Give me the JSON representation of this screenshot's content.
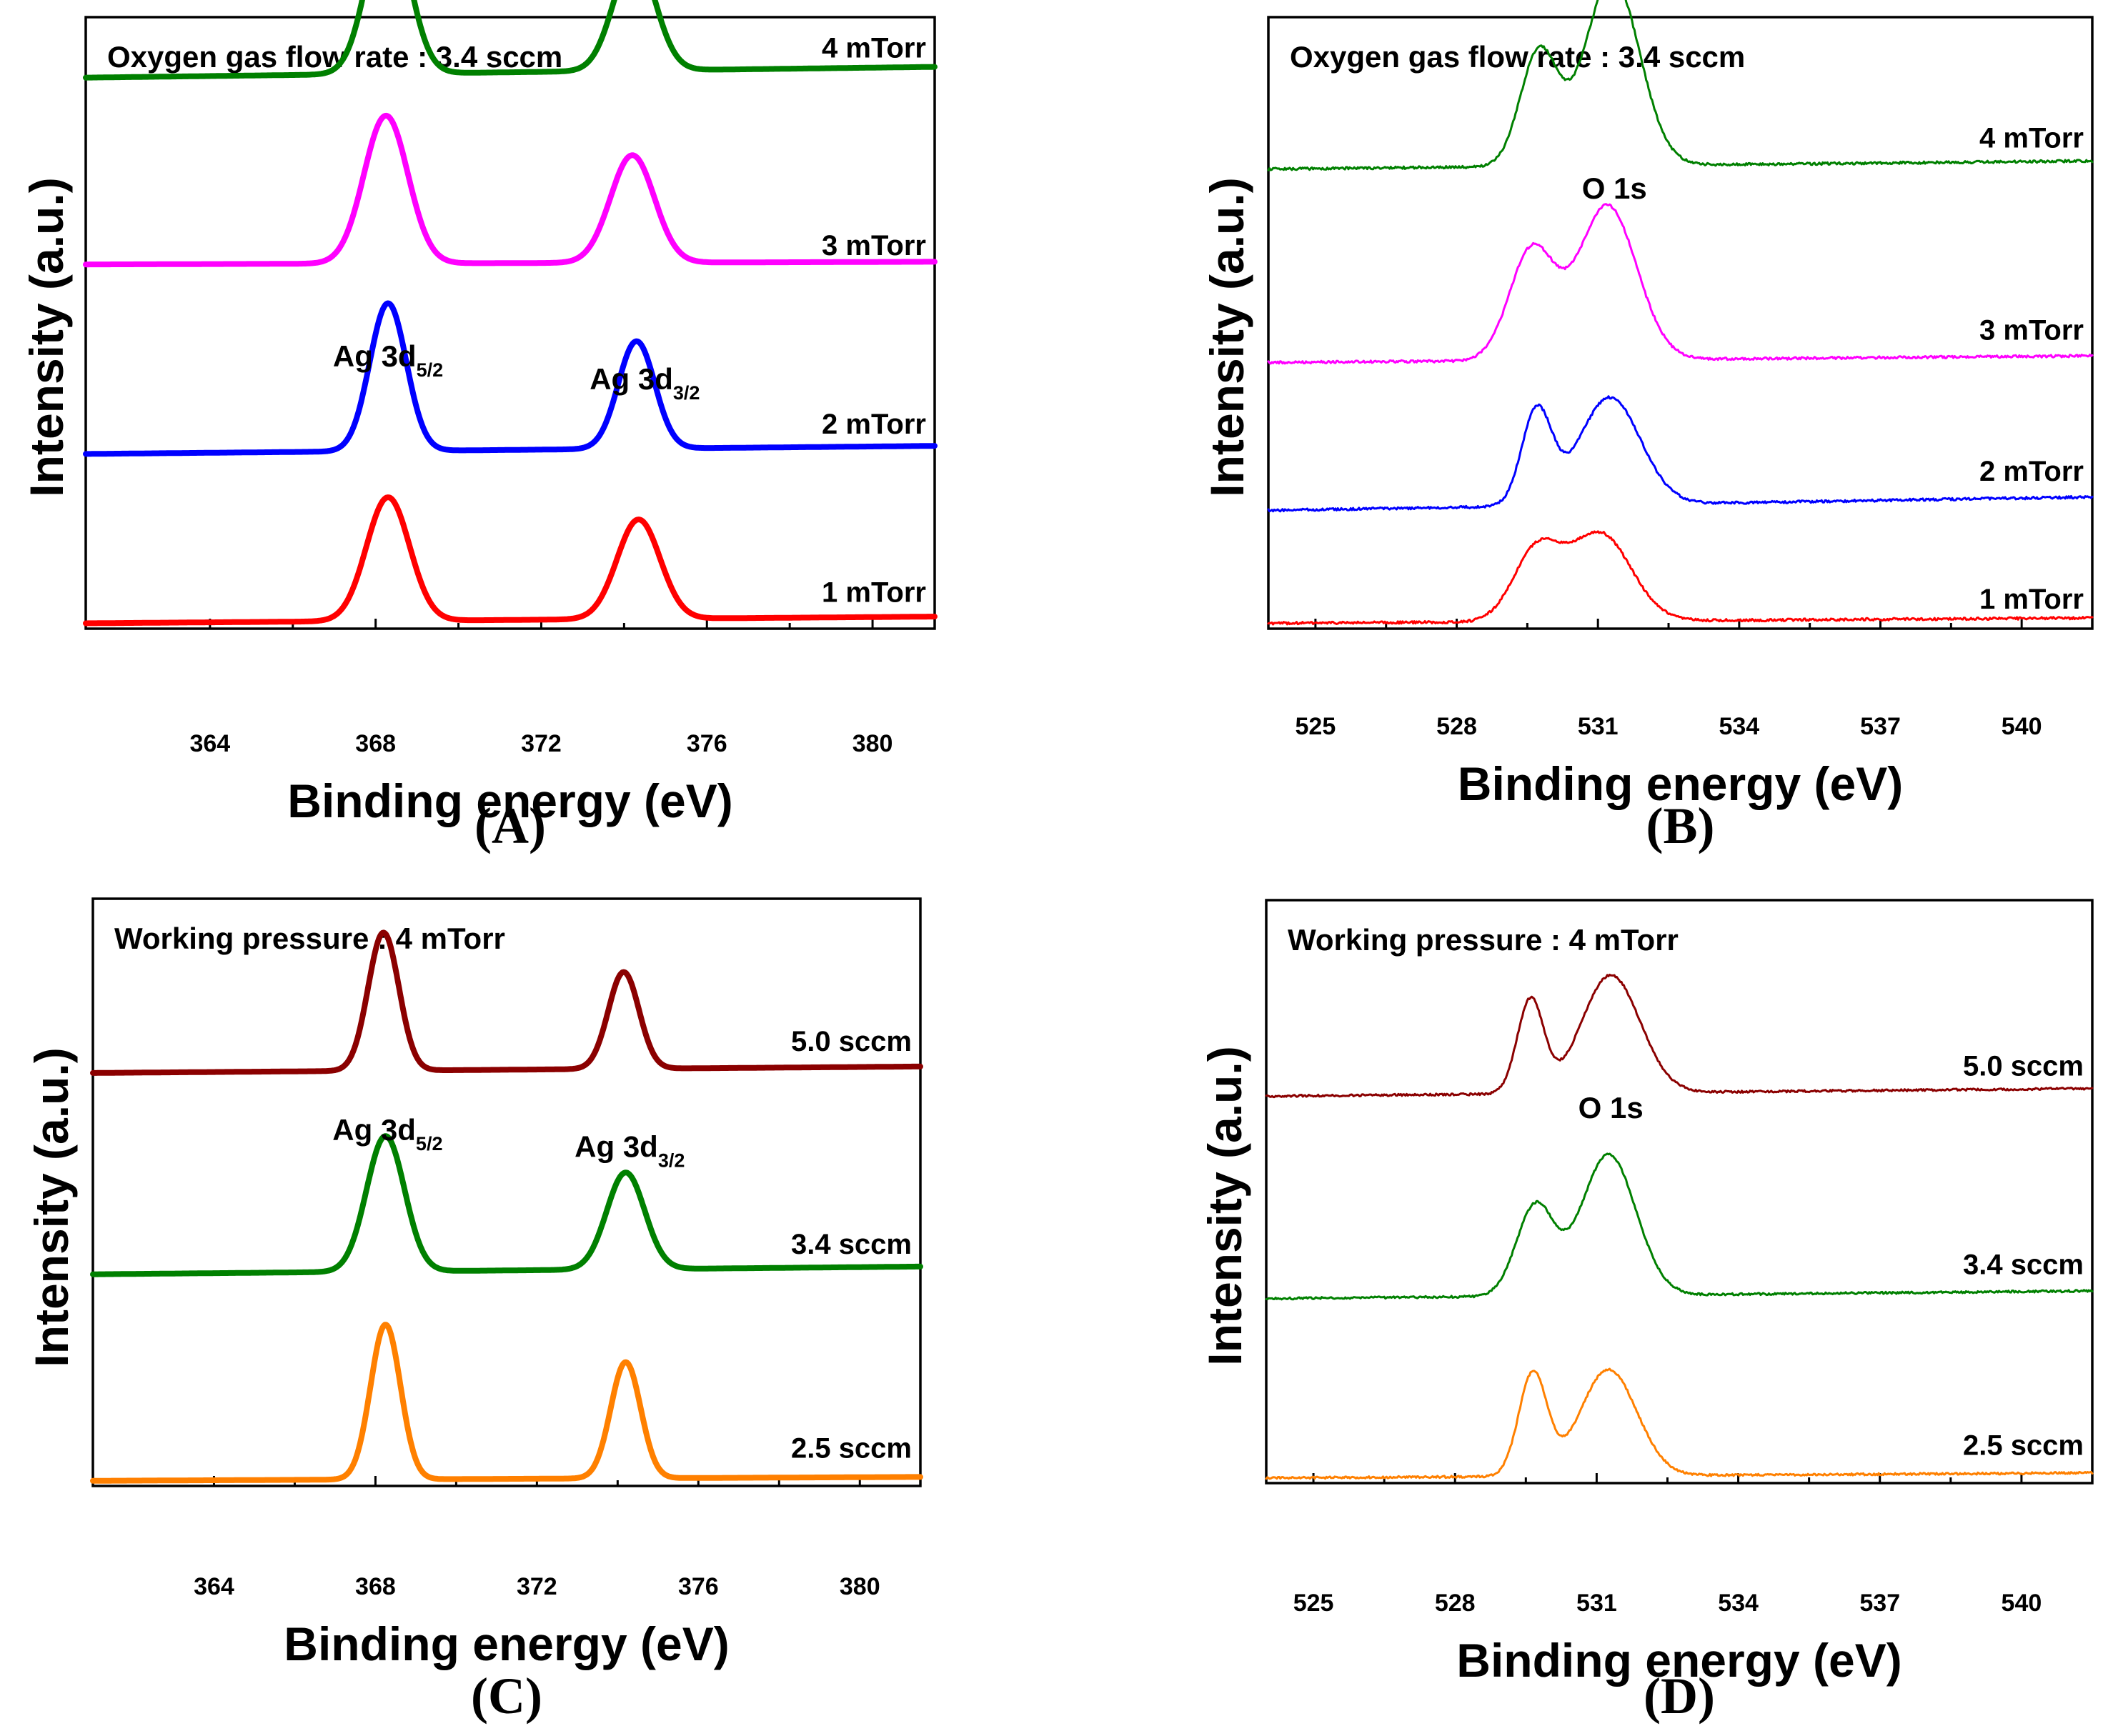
{
  "chart_data": [
    {
      "type": "line",
      "panel_label": "(A)",
      "title": "Oxygen gas flow rate : 3.4 sccm",
      "xlabel": "Binding energy (eV)",
      "ylabel": "Intensity (a.u.)",
      "xlim": [
        361,
        381.5
      ],
      "ylim": [
        0,
        4.55
      ],
      "xticks": [
        364,
        368,
        372,
        376,
        380
      ],
      "xtick_labels": [
        "364",
        "368",
        "372",
        "376",
        "380"
      ],
      "stroke_width": 8,
      "peaks_model": "gaussian_sum",
      "annotations": [
        {
          "main": "Ag 3d",
          "sub": "5/2",
          "x": 368.3,
          "y": 1.95
        },
        {
          "main": "Ag 3d",
          "sub": "3/2",
          "x": 374.5,
          "y": 1.78
        }
      ],
      "series": [
        {
          "name": "1 mTorr",
          "color": "#ff0000",
          "baseline": [
            0.04,
            0.09
          ],
          "label_y": 0.2,
          "peaks": [
            {
              "center": 368.3,
              "height": 0.92,
              "width": 0.52
            },
            {
              "center": 374.35,
              "height": 0.74,
              "width": 0.52
            }
          ]
        },
        {
          "name": "2 mTorr",
          "color": "#0000ff",
          "baseline": [
            1.3,
            1.36
          ],
          "label_y": 1.45,
          "peaks": [
            {
              "center": 368.3,
              "height": 1.1,
              "width": 0.44
            },
            {
              "center": 374.3,
              "height": 0.8,
              "width": 0.44
            }
          ]
        },
        {
          "name": "3 mTorr",
          "color": "#ff00ff",
          "baseline": [
            2.71,
            2.73
          ],
          "label_y": 2.78,
          "peaks": [
            {
              "center": 368.25,
              "height": 1.1,
              "width": 0.53
            },
            {
              "center": 374.2,
              "height": 0.8,
              "width": 0.53
            }
          ]
        },
        {
          "name": "4 mTorr",
          "color": "#008000",
          "baseline": [
            4.1,
            4.18
          ],
          "label_y": 4.25,
          "peaks": [
            {
              "center": 368.3,
              "height": 1.2,
              "width": 0.5
            },
            {
              "center": 374.25,
              "height": 0.85,
              "width": 0.5
            }
          ]
        }
      ]
    },
    {
      "type": "line",
      "panel_label": "(B)",
      "title": "Oxygen gas flow rate : 3.4 sccm",
      "xlabel": "Binding energy (eV)",
      "ylabel": "Intensity (a.u.)",
      "xlim": [
        524,
        541.5
      ],
      "ylim": [
        0,
        4.55
      ],
      "xticks": [
        525,
        528,
        531,
        534,
        537,
        540
      ],
      "xtick_labels": [
        "525",
        "528",
        "531",
        "534",
        "537",
        "540"
      ],
      "stroke_width": 3,
      "noise": 0.018,
      "peaks_model": "gaussian_sum",
      "annotations": [
        {
          "main": "O 1s",
          "sub": "",
          "x": 531.35,
          "y": 3.2
        }
      ],
      "series": [
        {
          "name": "1 mTorr",
          "color": "#ff0000",
          "baseline": [
            0.04,
            0.08
          ],
          "label_y": 0.15,
          "peaks": [
            {
              "center": 529.7,
              "height": 0.52,
              "width": 0.5
            },
            {
              "center": 531.05,
              "height": 0.65,
              "width": 0.65
            }
          ]
        },
        {
          "name": "2 mTorr",
          "color": "#0000ff",
          "baseline": [
            0.88,
            0.98
          ],
          "label_y": 1.1,
          "peaks": [
            {
              "center": 529.7,
              "height": 0.7,
              "width": 0.32
            },
            {
              "center": 531.25,
              "height": 0.8,
              "width": 0.65
            }
          ]
        },
        {
          "name": "3 mTorr",
          "color": "#ff00ff",
          "baseline": [
            1.98,
            2.03
          ],
          "label_y": 2.15,
          "peaks": [
            {
              "center": 529.6,
              "height": 0.82,
              "width": 0.48
            },
            {
              "center": 531.2,
              "height": 1.15,
              "width": 0.62
            }
          ]
        },
        {
          "name": "4 mTorr",
          "color": "#008000",
          "baseline": [
            3.42,
            3.48
          ],
          "label_y": 3.58,
          "peaks": [
            {
              "center": 529.75,
              "height": 0.85,
              "width": 0.4
            },
            {
              "center": 531.3,
              "height": 1.4,
              "width": 0.58
            }
          ]
        }
      ]
    },
    {
      "type": "line",
      "panel_label": "(C)",
      "title": "Working pressure : 4 mTorr",
      "xlabel": "Binding energy (eV)",
      "ylabel": "Intensity (a.u.)",
      "xlim": [
        361,
        381.5
      ],
      "ylim": [
        0,
        4.55
      ],
      "xticks": [
        364,
        368,
        372,
        376,
        380
      ],
      "xtick_labels": [
        "364",
        "368",
        "372",
        "376",
        "380"
      ],
      "stroke_width": 8,
      "peaks_model": "gaussian_sum",
      "annotations": [
        {
          "main": "Ag 3d",
          "sub": "5/2",
          "x": 368.3,
          "y": 2.68
        },
        {
          "main": "Ag 3d",
          "sub": "3/2",
          "x": 374.3,
          "y": 2.55
        }
      ],
      "series": [
        {
          "name": "2.5 sccm",
          "color": "#ff8000",
          "baseline": [
            0.04,
            0.07
          ],
          "label_y": 0.22,
          "peaks": [
            {
              "center": 368.25,
              "height": 1.2,
              "width": 0.37
            },
            {
              "center": 374.2,
              "height": 0.9,
              "width": 0.37
            }
          ]
        },
        {
          "name": "3.4 sccm",
          "color": "#008000",
          "baseline": [
            1.64,
            1.7
          ],
          "label_y": 1.8,
          "peaks": [
            {
              "center": 368.25,
              "height": 1.05,
              "width": 0.47
            },
            {
              "center": 374.2,
              "height": 0.75,
              "width": 0.47
            }
          ]
        },
        {
          "name": "5.0 sccm",
          "color": "#8b0000",
          "baseline": [
            3.2,
            3.25
          ],
          "label_y": 3.37,
          "peaks": [
            {
              "center": 368.2,
              "height": 1.07,
              "width": 0.38
            },
            {
              "center": 374.15,
              "height": 0.75,
              "width": 0.38
            }
          ]
        }
      ]
    },
    {
      "type": "line",
      "panel_label": "(D)",
      "title": "Working pressure : 4 mTorr",
      "xlabel": "Binding energy (eV)",
      "ylabel": "Intensity (a.u.)",
      "xlim": [
        524,
        541.5
      ],
      "ylim": [
        0,
        4.55
      ],
      "xticks": [
        525,
        528,
        531,
        534,
        537,
        540
      ],
      "xtick_labels": [
        "525",
        "528",
        "531",
        "534",
        "537",
        "540"
      ],
      "stroke_width": 3,
      "noise": 0.016,
      "peaks_model": "gaussian_sum",
      "annotations": [
        {
          "main": "O 1s",
          "sub": "",
          "x": 531.3,
          "y": 2.85
        }
      ],
      "series": [
        {
          "name": "2.5 sccm",
          "color": "#ff8000",
          "baseline": [
            0.04,
            0.08
          ],
          "label_y": 0.22,
          "peaks": [
            {
              "center": 529.65,
              "height": 0.8,
              "width": 0.3
            },
            {
              "center": 531.25,
              "height": 0.83,
              "width": 0.6
            }
          ]
        },
        {
          "name": "3.4 sccm",
          "color": "#008000",
          "baseline": [
            1.44,
            1.5
          ],
          "label_y": 1.63,
          "peaks": [
            {
              "center": 529.7,
              "height": 0.7,
              "width": 0.4
            },
            {
              "center": 531.25,
              "height": 1.1,
              "width": 0.58
            }
          ]
        },
        {
          "name": "5.0 sccm",
          "color": "#8b0000",
          "baseline": [
            3.02,
            3.08
          ],
          "label_y": 3.18,
          "peaks": [
            {
              "center": 529.6,
              "height": 0.73,
              "width": 0.28
            },
            {
              "center": 531.3,
              "height": 0.92,
              "width": 0.62
            }
          ]
        }
      ]
    }
  ]
}
